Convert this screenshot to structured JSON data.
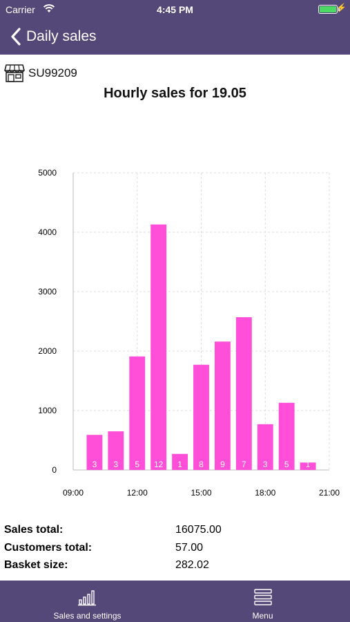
{
  "status_bar": {
    "carrier": "Carrier",
    "time": "4:45 PM"
  },
  "nav": {
    "back_label": "Daily sales"
  },
  "store": {
    "code": "SU99209"
  },
  "chart_title": "Hourly sales for 19.05",
  "chart_data": {
    "type": "bar",
    "title": "Hourly sales for 19.05",
    "xlabel": "",
    "ylabel": "",
    "x_ticks": [
      "09:00",
      "12:00",
      "15:00",
      "18:00",
      "21:00"
    ],
    "y_ticks": [
      "0",
      "1000",
      "2000",
      "3000",
      "4000",
      "5000"
    ],
    "xlim_hours": [
      9,
      21
    ],
    "ylim": [
      0,
      5000
    ],
    "grid": true,
    "bar_color": "#ff4fd8",
    "bars": [
      {
        "hour": 10,
        "value": 590,
        "customers": "3"
      },
      {
        "hour": 11,
        "value": 650,
        "customers": "3"
      },
      {
        "hour": 12,
        "value": 1910,
        "customers": "5"
      },
      {
        "hour": 13,
        "value": 4130,
        "customers": "12"
      },
      {
        "hour": 14,
        "value": 270,
        "customers": "1"
      },
      {
        "hour": 15,
        "value": 1770,
        "customers": "8"
      },
      {
        "hour": 16,
        "value": 2160,
        "customers": "9"
      },
      {
        "hour": 17,
        "value": 2570,
        "customers": "7"
      },
      {
        "hour": 18,
        "value": 770,
        "customers": "3"
      },
      {
        "hour": 19,
        "value": 1130,
        "customers": "5"
      },
      {
        "hour": 20,
        "value": 125,
        "customers": "1"
      }
    ]
  },
  "summary": {
    "sales_total_label": "Sales total:",
    "sales_total_value": "16075.00",
    "customers_total_label": "Customers total:",
    "customers_total_value": "57.00",
    "basket_size_label": "Basket size:",
    "basket_size_value": "282.02"
  },
  "tabs": [
    {
      "label": "Sales and settings",
      "icon": "bar-chart-icon"
    },
    {
      "label": "Menu",
      "icon": "menu-icon"
    }
  ],
  "colors": {
    "header_bg": "#544878",
    "bar": "#ff4fd8",
    "battery": "#4cd964"
  }
}
